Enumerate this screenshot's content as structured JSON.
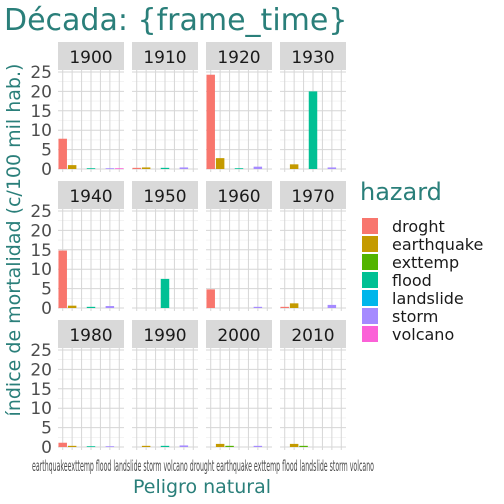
{
  "chart_data": {
    "type": "bar",
    "title": "Década: {frame_time}",
    "xlabel": "Peligro natural",
    "ylabel": "índice de mortalidad (c/100 mil hab.)",
    "ylim": [
      0,
      25
    ],
    "yticks": [
      "0",
      "5",
      "10",
      "15",
      "20",
      "25"
    ],
    "categories": [
      "droght",
      "earthquake",
      "exttemp",
      "flood",
      "landslide",
      "storm",
      "volcano"
    ],
    "x_tick_label_row": "earthquakeexttemp flood landslide storm volcano drought earthquake exttemp flood landslide storm volcano",
    "legend": {
      "title": "hazard",
      "position": "right",
      "entries": [
        {
          "name": "droght",
          "color": "#F8766D"
        },
        {
          "name": "earthquake",
          "color": "#C49A00"
        },
        {
          "name": "exttemp",
          "color": "#53B400"
        },
        {
          "name": "flood",
          "color": "#00C094"
        },
        {
          "name": "landslide",
          "color": "#00B6EB"
        },
        {
          "name": "storm",
          "color": "#A58AFF"
        },
        {
          "name": "volcano",
          "color": "#FB61D7"
        }
      ]
    },
    "grid": true,
    "facets": [
      {
        "label": "1900",
        "values": [
          7.8,
          1.0,
          0,
          0.2,
          0,
          0.2,
          0.2
        ]
      },
      {
        "label": "1910",
        "values": [
          0.3,
          0.4,
          0,
          0.3,
          0,
          0.4,
          0
        ]
      },
      {
        "label": "1920",
        "values": [
          24.3,
          2.8,
          0,
          0.2,
          0,
          0.6,
          0
        ]
      },
      {
        "label": "1930",
        "values": [
          0,
          1.2,
          0,
          20.0,
          0,
          0.4,
          0
        ]
      },
      {
        "label": "1940",
        "values": [
          14.8,
          0.6,
          0,
          0.3,
          0,
          0.5,
          0
        ]
      },
      {
        "label": "1950",
        "values": [
          0,
          0,
          0,
          7.5,
          0,
          0,
          0
        ]
      },
      {
        "label": "1960",
        "values": [
          4.8,
          0,
          0,
          0,
          0,
          0.3,
          0
        ]
      },
      {
        "label": "1970",
        "values": [
          0.3,
          1.2,
          0,
          0,
          0,
          0.8,
          0
        ]
      },
      {
        "label": "1980",
        "values": [
          1.1,
          0.3,
          0,
          0.2,
          0,
          0.2,
          0
        ]
      },
      {
        "label": "1990",
        "values": [
          0,
          0.3,
          0,
          0.3,
          0,
          0.4,
          0
        ]
      },
      {
        "label": "2000",
        "values": [
          0,
          0.8,
          0.3,
          0,
          0,
          0.3,
          0
        ]
      },
      {
        "label": "2010",
        "values": [
          0,
          0.8,
          0.3,
          0,
          0,
          0,
          0
        ]
      }
    ]
  }
}
